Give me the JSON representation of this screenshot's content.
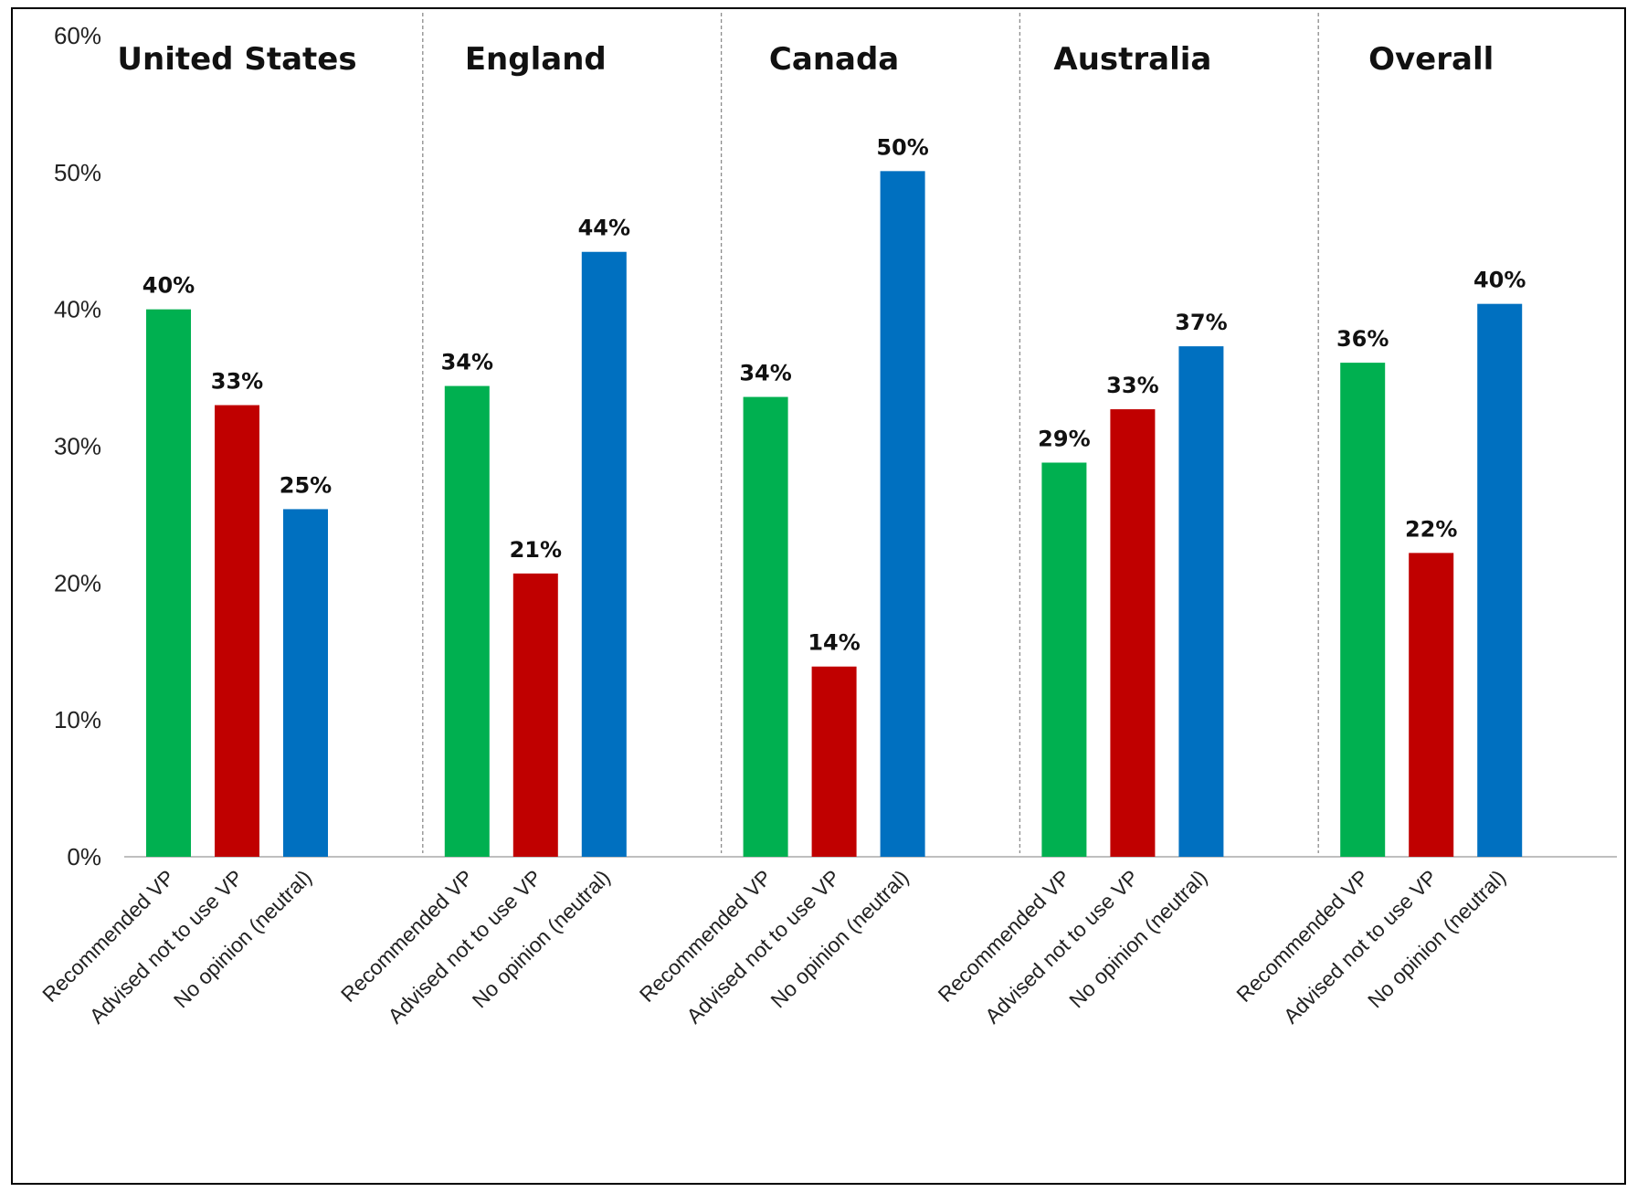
{
  "chart_data": {
    "type": "bar",
    "ylim": [
      0,
      60
    ],
    "y_ticks": [
      "0%",
      "10%",
      "20%",
      "30%",
      "40%",
      "50%",
      "60%"
    ],
    "y_tick_values": [
      0,
      10,
      20,
      30,
      40,
      50,
      60
    ],
    "categories": [
      "Recommended VP",
      "Advised not to use VP",
      "No opinion (neutral)"
    ],
    "colors": [
      "#00B050",
      "#C00000",
      "#0070C0"
    ],
    "grid": false,
    "group_separators": "dashed",
    "groups": [
      {
        "title": "United States",
        "values": [
          40,
          33,
          25.4
        ],
        "labels": [
          "40%",
          "33%",
          "25%"
        ]
      },
      {
        "title": "England",
        "values": [
          34.4,
          20.7,
          44.2
        ],
        "labels": [
          "34%",
          "21%",
          "44%"
        ]
      },
      {
        "title": "Canada",
        "values": [
          33.6,
          13.9,
          50.1
        ],
        "labels": [
          "34%",
          "14%",
          "50%"
        ]
      },
      {
        "title": "Australia",
        "values": [
          28.8,
          32.7,
          37.3
        ],
        "labels": [
          "29%",
          "33%",
          "37%"
        ]
      },
      {
        "title": "Overall",
        "values": [
          36.1,
          22.2,
          40.4
        ],
        "labels": [
          "36%",
          "22%",
          "40%"
        ]
      }
    ]
  }
}
